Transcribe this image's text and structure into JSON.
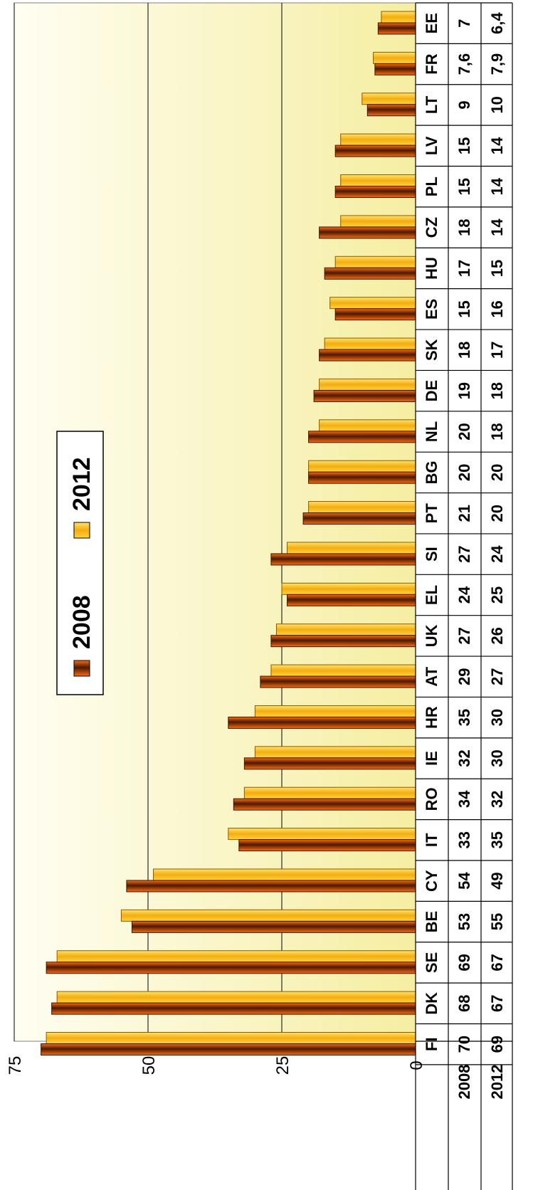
{
  "chart_data": {
    "type": "bar",
    "orientation": "horizontal",
    "title": "",
    "xlabel": "",
    "ylabel": "",
    "categories": [
      "EE",
      "FR",
      "LT",
      "LV",
      "PL",
      "CZ",
      "HU",
      "ES",
      "SK",
      "DE",
      "NL",
      "BG",
      "PT",
      "SI",
      "EL",
      "UK",
      "AT",
      "HR",
      "IE",
      "RO",
      "IT",
      "CY",
      "BE",
      "SE",
      "DK",
      "FI"
    ],
    "series": [
      {
        "name": "2008",
        "values": [
          7,
          7.6,
          9,
          15,
          15,
          18,
          17,
          15,
          18,
          19,
          20,
          20,
          21,
          27,
          24,
          27,
          29,
          35,
          32,
          34,
          33,
          54,
          53,
          69,
          68,
          70
        ]
      },
      {
        "name": "2012",
        "values": [
          6.4,
          7.9,
          10,
          14,
          14,
          14,
          15,
          16,
          17,
          18,
          18,
          20,
          20,
          24,
          25,
          26,
          27,
          30,
          30,
          32,
          35,
          49,
          55,
          67,
          67,
          69
        ]
      }
    ],
    "table_labels": {
      "2008": [
        "7",
        "7,6",
        "9",
        "15",
        "15",
        "18",
        "17",
        "15",
        "18",
        "19",
        "20",
        "20",
        "21",
        "27",
        "24",
        "27",
        "29",
        "35",
        "32",
        "34",
        "33",
        "54",
        "53",
        "69",
        "68",
        "70"
      ],
      "2012": [
        "6,4",
        "7,9",
        "10",
        "14",
        "14",
        "14",
        "15",
        "16",
        "17",
        "18",
        "18",
        "20",
        "20",
        "24",
        "25",
        "26",
        "27",
        "30",
        "30",
        "32",
        "35",
        "49",
        "55",
        "67",
        "67",
        "69"
      ]
    },
    "value_axis": {
      "ticks": [
        "0",
        "25",
        "50",
        "75"
      ],
      "range": [
        0,
        75
      ]
    },
    "grid": true,
    "legend_position": "top-left",
    "colors": {
      "2008": "#e65a10",
      "2008_dark": "#5a2000",
      "2012": "#f7c21e",
      "2012_light": "#ffe066",
      "plot_bg_light": "#fffde5",
      "plot_bg_dark": "#f6f0a8"
    }
  }
}
